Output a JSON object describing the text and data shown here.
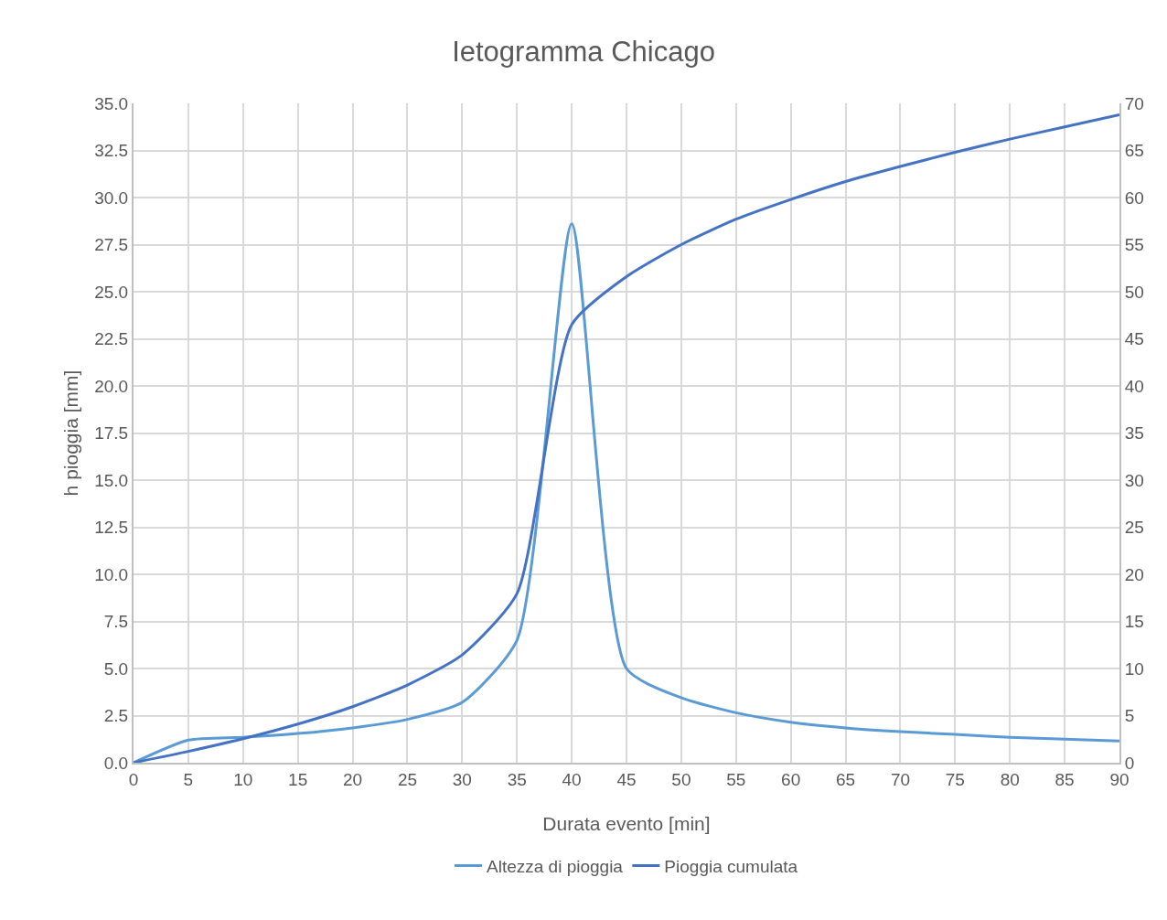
{
  "chart_data": {
    "type": "line",
    "title": "Ietogramma Chicago",
    "xlabel": "Durata evento [min]",
    "ylabel": "h pioggia [mm]",
    "x": [
      0,
      5,
      10,
      15,
      20,
      25,
      30,
      35,
      40,
      45,
      50,
      55,
      60,
      65,
      70,
      75,
      80,
      85,
      90
    ],
    "series": [
      {
        "name": "Altezza di pioggia",
        "color": "#5b9bd5",
        "values": [
          0,
          1.2,
          1.35,
          1.55,
          1.85,
          2.3,
          3.2,
          6.5,
          28.6,
          5.0,
          3.45,
          2.65,
          2.15,
          1.85,
          1.65,
          1.5,
          1.35,
          1.25,
          1.15
        ]
      },
      {
        "name": "Pioggia cumulata",
        "color": "#4472c4",
        "axis": "y2",
        "values": [
          0,
          1.2,
          2.55,
          4.1,
          5.95,
          8.25,
          11.45,
          17.95,
          46.5,
          51.6,
          55,
          57.7,
          59.8,
          61.7,
          63.3,
          64.8,
          66.2,
          67.5,
          68.8
        ]
      }
    ],
    "xlim": [
      0,
      90
    ],
    "xticks": [
      0,
      5,
      10,
      15,
      20,
      25,
      30,
      35,
      40,
      45,
      50,
      55,
      60,
      65,
      70,
      75,
      80,
      85,
      90
    ],
    "ylim": [
      0,
      35
    ],
    "yticks": [
      {
        "value": 0,
        "label": "0.0"
      },
      {
        "value": 2.5,
        "label": "2.5"
      },
      {
        "value": 5,
        "label": "5.0"
      },
      {
        "value": 7.5,
        "label": "7.5"
      },
      {
        "value": 10,
        "label": "10.0"
      },
      {
        "value": 12.5,
        "label": "12.5"
      },
      {
        "value": 15,
        "label": "15.0"
      },
      {
        "value": 17.5,
        "label": "17.5"
      },
      {
        "value": 20,
        "label": "20.0"
      },
      {
        "value": 22.5,
        "label": "22.5"
      },
      {
        "value": 25,
        "label": "25.0"
      },
      {
        "value": 27.5,
        "label": "27.5"
      },
      {
        "value": 30,
        "label": "30.0"
      },
      {
        "value": 32.5,
        "label": "32.5"
      },
      {
        "value": 35,
        "label": "35.0"
      }
    ],
    "y2lim": [
      0,
      70
    ],
    "y2ticks": [
      0,
      5,
      10,
      15,
      20,
      25,
      30,
      35,
      40,
      45,
      50,
      55,
      60,
      65,
      70
    ],
    "grid": true,
    "legend": "bottom",
    "marker": "none",
    "line_style": "solid"
  }
}
